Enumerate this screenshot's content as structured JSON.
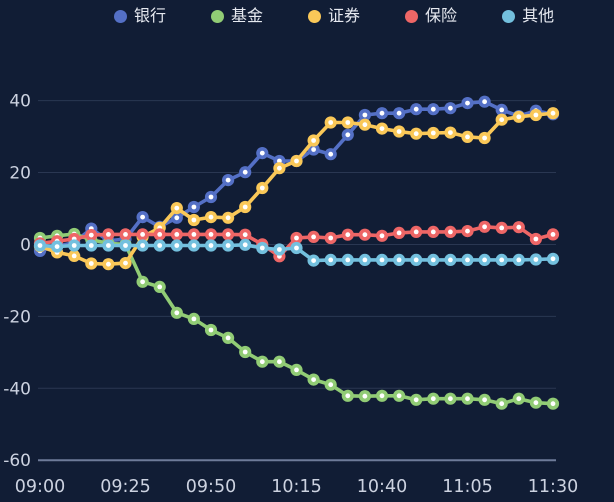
{
  "colors": {
    "background": "#111d35",
    "grid_line": "#2a3752",
    "axis_line": "#6e7b99",
    "tick_label": "#ccd2e0",
    "legend_text": "#e6e9f0",
    "marker_center": "#ffffff"
  },
  "legend": {
    "position": "top",
    "items": [
      {
        "id": "bank",
        "label": "银行",
        "color": "#5470c6"
      },
      {
        "id": "fund",
        "label": "基金",
        "color": "#91cc75"
      },
      {
        "id": "securities",
        "label": "证券",
        "color": "#fac858"
      },
      {
        "id": "insurance",
        "label": "保险",
        "color": "#ee6666"
      },
      {
        "id": "other",
        "label": "其他",
        "color": "#73c0de"
      }
    ]
  },
  "chart_data": {
    "type": "line",
    "title": "",
    "xlabel": "",
    "ylabel": "",
    "grid": true,
    "legend_position": "top",
    "marker_style": "filled-circle-with-white-center",
    "ylim": [
      -60,
      40
    ],
    "yticks": [
      40,
      20,
      0,
      -20,
      -40,
      -60
    ],
    "x_ticks": [
      "09:00",
      "09:25",
      "09:50",
      "10:15",
      "10:40",
      "11:05",
      "11:30"
    ],
    "x": [
      "09:00",
      "09:05",
      "09:10",
      "09:15",
      "09:20",
      "09:25",
      "09:30",
      "09:35",
      "09:40",
      "09:45",
      "09:50",
      "09:55",
      "10:00",
      "10:05",
      "10:10",
      "10:15",
      "10:20",
      "10:25",
      "10:30",
      "10:35",
      "10:40",
      "10:45",
      "10:50",
      "10:55",
      "11:00",
      "11:05",
      "11:10",
      "11:15",
      "11:20",
      "11:25",
      "11:30"
    ],
    "series": [
      {
        "id": "bank",
        "name": "银行",
        "color": "#5470c6",
        "values": [
          -1.8,
          -0.5,
          0.5,
          4.4,
          1,
          1.5,
          7.6,
          4.9,
          7.4,
          10.4,
          13.2,
          17.9,
          20.1,
          25.4,
          23.2,
          23.2,
          26.4,
          25.1,
          30.5,
          36,
          36.5,
          36.5,
          37.6,
          37.6,
          37.9,
          39.3,
          39.7,
          37.4,
          35.7,
          37.2,
          36.2
        ]
      },
      {
        "id": "fund",
        "name": "基金",
        "color": "#91cc75",
        "values": [
          1.8,
          2.4,
          2.9,
          1.3,
          0.3,
          0,
          -10.4,
          -11.8,
          -19,
          -20.7,
          -23.8,
          -26,
          -29.9,
          -32.6,
          -32.6,
          -34.9,
          -37.6,
          -39,
          -42.1,
          -42.2,
          -42.1,
          -42.1,
          -43.2,
          -42.9,
          -42.9,
          -42.9,
          -43.2,
          -44.3,
          -42.9,
          -44,
          -44.3
        ]
      },
      {
        "id": "securities",
        "name": "证券",
        "color": "#fac858",
        "values": [
          -0.5,
          -2.2,
          -3.2,
          -5.3,
          -5.5,
          -5.2,
          2.1,
          4.6,
          10.1,
          6.8,
          7.6,
          7.4,
          10.4,
          15.7,
          21.2,
          23.2,
          28.9,
          33.9,
          33.9,
          33.3,
          32.2,
          31.4,
          30.8,
          31,
          31.1,
          29.9,
          29.6,
          34.7,
          35.5,
          36,
          36.5
        ]
      },
      {
        "id": "insurance",
        "name": "保险",
        "color": "#ee6666",
        "values": [
          0.3,
          0.9,
          1.5,
          2.6,
          2.8,
          2.8,
          2.8,
          2.8,
          2.8,
          2.8,
          2.8,
          2.8,
          2.7,
          0,
          -3.3,
          1.8,
          2.1,
          1.8,
          2.7,
          2.7,
          2.4,
          3.2,
          3.5,
          3.5,
          3.5,
          3.7,
          4.9,
          4.6,
          4.8,
          1.5,
          2.8
        ]
      },
      {
        "id": "other",
        "name": "其他",
        "color": "#73c0de",
        "values": [
          -0.3,
          -0.6,
          -0.3,
          -0.3,
          -0.3,
          -0.3,
          -0.3,
          -0.3,
          -0.3,
          -0.3,
          -0.3,
          -0.3,
          -0.1,
          -1,
          -1.4,
          -1,
          -4.5,
          -4.3,
          -4.3,
          -4.3,
          -4.3,
          -4.3,
          -4.3,
          -4.3,
          -4.3,
          -4.3,
          -4.3,
          -4.3,
          -4.3,
          -4.2,
          -4
        ]
      }
    ]
  }
}
